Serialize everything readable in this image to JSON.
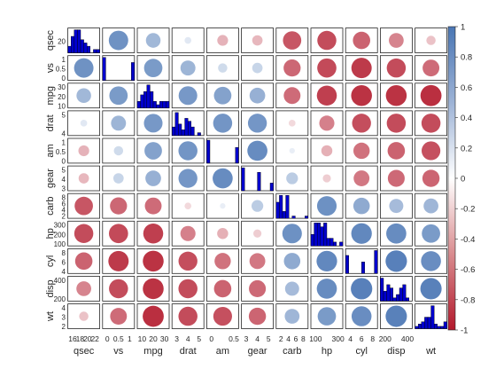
{
  "chart_data": {
    "type": "heatmap",
    "variables": [
      "qsec",
      "vs",
      "mpg",
      "drat",
      "am",
      "gear",
      "carb",
      "hp",
      "cyl",
      "disp",
      "wt"
    ],
    "correlation": [
      [
        1.0,
        0.74,
        0.42,
        0.09,
        -0.23,
        -0.21,
        -0.66,
        -0.71,
        -0.59,
        -0.43,
        -0.17
      ],
      [
        0.74,
        1.0,
        0.66,
        0.44,
        0.17,
        0.21,
        -0.57,
        -0.72,
        -0.81,
        -0.71,
        -0.55
      ],
      [
        0.42,
        0.66,
        1.0,
        0.68,
        0.6,
        0.48,
        -0.55,
        -0.78,
        -0.85,
        -0.85,
        -0.87
      ],
      [
        0.09,
        0.44,
        0.68,
        1.0,
        0.71,
        0.7,
        -0.09,
        -0.45,
        -0.7,
        -0.71,
        -0.71
      ],
      [
        -0.23,
        0.17,
        0.6,
        0.71,
        1.0,
        0.79,
        0.06,
        -0.24,
        -0.52,
        -0.59,
        -0.69
      ],
      [
        -0.21,
        0.21,
        0.48,
        0.7,
        0.79,
        1.0,
        0.27,
        -0.13,
        -0.49,
        -0.56,
        -0.58
      ],
      [
        -0.66,
        -0.57,
        -0.55,
        -0.09,
        0.06,
        0.27,
        1.0,
        0.75,
        0.53,
        0.39,
        0.43
      ],
      [
        -0.71,
        -0.72,
        -0.78,
        -0.45,
        -0.24,
        -0.13,
        0.75,
        1.0,
        0.83,
        0.79,
        0.66
      ],
      [
        -0.59,
        -0.81,
        -0.85,
        -0.7,
        -0.52,
        -0.49,
        0.53,
        0.83,
        1.0,
        0.9,
        0.78
      ],
      [
        -0.43,
        -0.71,
        -0.85,
        -0.71,
        -0.59,
        -0.56,
        0.39,
        0.79,
        0.9,
        1.0,
        0.89
      ],
      [
        -0.17,
        -0.55,
        -0.87,
        -0.71,
        -0.69,
        -0.58,
        0.43,
        0.66,
        0.78,
        0.89,
        1.0
      ]
    ],
    "histograms": [
      [
        2,
        5,
        7,
        7,
        4,
        3,
        2,
        0,
        1,
        1
      ],
      [
        18,
        0,
        0,
        0,
        0,
        0,
        0,
        0,
        0,
        14
      ],
      [
        2,
        4,
        5,
        7,
        5,
        2,
        1,
        2,
        2,
        2
      ],
      [
        3,
        8,
        4,
        2,
        6,
        5,
        3,
        0,
        1,
        0
      ],
      [
        19,
        0,
        0,
        0,
        0,
        0,
        0,
        0,
        0,
        13
      ],
      [
        15,
        0,
        0,
        0,
        0,
        12,
        0,
        0,
        0,
        5
      ],
      [
        7,
        10,
        3,
        10,
        0,
        1,
        0,
        0,
        0,
        1
      ],
      [
        3,
        6,
        6,
        5,
        6,
        2,
        2,
        1,
        0,
        1
      ],
      [
        11,
        0,
        0,
        0,
        0,
        7,
        0,
        0,
        0,
        14
      ],
      [
        7,
        3,
        5,
        4,
        1,
        2,
        4,
        5,
        1,
        0
      ],
      [
        1,
        2,
        3,
        5,
        5,
        10,
        2,
        1,
        1,
        3
      ]
    ],
    "row_labels": [
      "qsec",
      "vs",
      "mpg",
      "drat",
      "am",
      "gear",
      "carb",
      "hp",
      "cyl",
      "disp",
      "wt"
    ],
    "col_labels": [
      "qsec",
      "vs",
      "mpg",
      "drat",
      "am",
      "gear",
      "carb",
      "hp",
      "cyl",
      "disp",
      "wt"
    ],
    "y_ticks": [
      [
        "20"
      ],
      [
        "0",
        "0.5",
        "1"
      ],
      [
        "10",
        "20",
        "30"
      ],
      [
        "4",
        "5"
      ],
      [
        "0",
        "0.5",
        "1"
      ],
      [
        "3",
        "4",
        "5"
      ],
      [
        "2",
        "4",
        "6",
        "8"
      ],
      [
        "100",
        "200",
        "300"
      ],
      [
        "4",
        "6",
        "8"
      ],
      [
        "200",
        "400"
      ],
      [
        "2",
        "3",
        "4"
      ]
    ],
    "x_ticks": [
      [
        "16",
        "18",
        "20",
        "22"
      ],
      [
        "0",
        "0.5",
        "1"
      ],
      [
        "10",
        "20",
        "30"
      ],
      [
        "3",
        "4",
        "5"
      ],
      [
        "0",
        "0.5"
      ],
      [
        "3",
        "4",
        "5"
      ],
      [
        "2",
        "4",
        "6",
        "8"
      ],
      [
        "100",
        "300"
      ],
      [
        "4",
        "6",
        "8"
      ],
      [
        "200",
        "400"
      ],
      []
    ],
    "colorbar": {
      "ticks": [
        "1",
        "0.8",
        "0.6",
        "0.4",
        "0.2",
        "0",
        "-0.2",
        "-0.4",
        "-0.6",
        "-0.8",
        "-1"
      ],
      "range": [
        -1,
        1
      ],
      "positive_color": "#4A76B4",
      "neutral_color": "#FFFFFF",
      "negative_color": "#B2182B"
    },
    "histogram_color": "#0000CC",
    "grid": false
  }
}
